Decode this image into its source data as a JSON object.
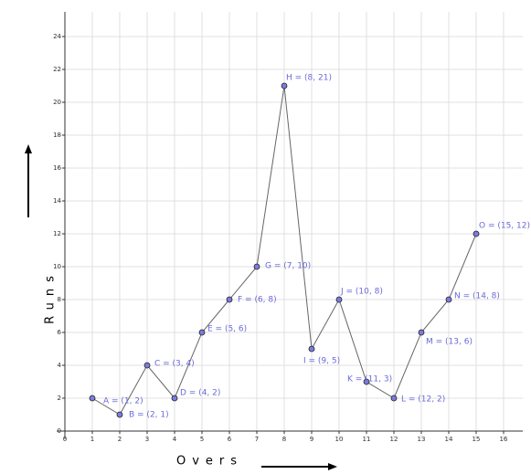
{
  "chart_data": {
    "type": "line",
    "x_label": "Overs",
    "y_label": "Runs",
    "x": [
      1,
      2,
      3,
      4,
      5,
      6,
      7,
      8,
      9,
      10,
      11,
      12,
      13,
      14,
      15
    ],
    "series": [
      {
        "color": "#666666",
        "values": [
          2,
          1,
          4,
          2,
          6,
          8,
          10,
          21,
          5,
          8,
          3,
          2,
          6,
          8,
          12
        ]
      }
    ],
    "point_labels": [
      "A = (1, 2)",
      "B = (2, 1)",
      "C = (3, 4)",
      "D = (4, 2)",
      "E = (5, 6)",
      "F = (6, 8)",
      "G = (7, 10)",
      "H = (8, 21)",
      "I = (9, 5)",
      "J = (10, 8)",
      "K = (11, 3)",
      "L = (12, 2)",
      "M = (13, 6)",
      "N = (14, 8)",
      "O = (15, 12)"
    ],
    "xlim": [
      -0.3,
      16.7
    ],
    "ylim": [
      -0.5,
      25.5
    ],
    "xticks": [
      0,
      1,
      2,
      3,
      4,
      5,
      6,
      7,
      8,
      9,
      10,
      11,
      12,
      13,
      14,
      15,
      16
    ],
    "yticks": [
      0,
      2,
      4,
      6,
      8,
      10,
      12,
      14,
      16,
      18,
      20,
      22,
      24
    ],
    "grid": true
  }
}
